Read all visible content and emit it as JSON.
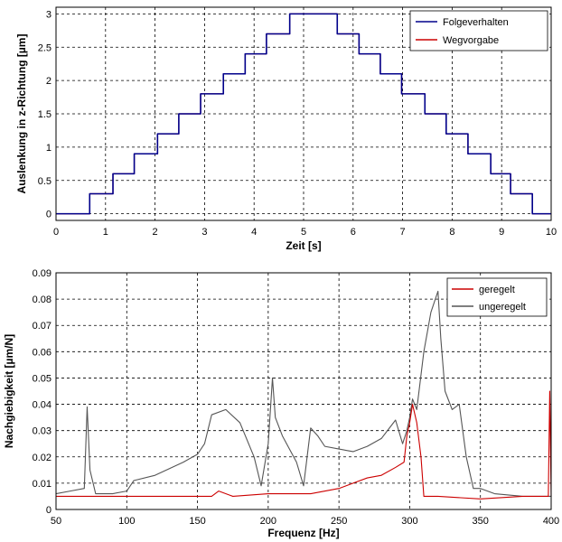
{
  "chart_data": [
    {
      "type": "line",
      "xlabel": "Zeit [s]",
      "ylabel": "Auslenkung in z-Richtung [µm]",
      "xlim": [
        0,
        10
      ],
      "ylim": [
        -0.1,
        3.1
      ],
      "xticks": [
        0,
        1,
        2,
        3,
        4,
        5,
        6,
        7,
        8,
        9,
        10
      ],
      "yticks": [
        0,
        0.5,
        1,
        1.5,
        2,
        2.5,
        3
      ],
      "ytick_labels": [
        "0",
        "0.5",
        "1",
        "1.5",
        "2",
        "2.5",
        "3"
      ],
      "grid": true,
      "legend_position": "top-right",
      "series": [
        {
          "name": "Folgeverhalten",
          "color": "#00008b",
          "x": [
            0,
            0.68,
            0.68,
            1.15,
            1.15,
            1.58,
            1.58,
            2.05,
            2.05,
            2.48,
            2.48,
            2.92,
            2.92,
            3.38,
            3.38,
            3.82,
            3.82,
            4.25,
            4.25,
            4.72,
            4.72,
            5.68,
            5.68,
            6.12,
            6.12,
            6.55,
            6.55,
            6.98,
            6.98,
            7.45,
            7.45,
            7.88,
            7.88,
            8.32,
            8.32,
            8.78,
            8.78,
            9.18,
            9.18,
            9.62,
            9.62,
            10
          ],
          "y": [
            0,
            0,
            0.3,
            0.3,
            0.6,
            0.6,
            0.9,
            0.9,
            1.2,
            1.2,
            1.5,
            1.5,
            1.8,
            1.8,
            2.1,
            2.1,
            2.4,
            2.4,
            2.7,
            2.7,
            3.0,
            3.0,
            2.7,
            2.7,
            2.4,
            2.4,
            2.1,
            2.1,
            1.8,
            1.8,
            1.5,
            1.5,
            1.2,
            1.2,
            0.9,
            0.9,
            0.6,
            0.6,
            0.3,
            0.3,
            0,
            0
          ]
        },
        {
          "name": "Wegvorgabe",
          "color": "#cc0000",
          "x": [
            0,
            0.68,
            0.68,
            1.15,
            1.15,
            1.58,
            1.58,
            2.05,
            2.05,
            2.48,
            2.48,
            2.92,
            2.92,
            3.38,
            3.38,
            3.82,
            3.82,
            4.25,
            4.25,
            4.72,
            4.72,
            5.68,
            5.68,
            6.12,
            6.12,
            6.55,
            6.55,
            6.98,
            6.98,
            7.45,
            7.45,
            7.88,
            7.88,
            8.32,
            8.32,
            8.78,
            8.78,
            9.18,
            9.18,
            9.62,
            9.62,
            10
          ],
          "y": [
            0,
            0,
            0.3,
            0.3,
            0.6,
            0.6,
            0.9,
            0.9,
            1.2,
            1.2,
            1.5,
            1.5,
            1.8,
            1.8,
            2.1,
            2.1,
            2.4,
            2.4,
            2.7,
            2.7,
            3.0,
            3.0,
            2.7,
            2.7,
            2.4,
            2.4,
            2.1,
            2.1,
            1.8,
            1.8,
            1.5,
            1.5,
            1.2,
            1.2,
            0.9,
            0.9,
            0.6,
            0.6,
            0.3,
            0.3,
            0,
            0
          ]
        }
      ]
    },
    {
      "type": "line",
      "xlabel": "Frequenz [Hz]",
      "ylabel": "Nachgiebigkeit [µm/N]",
      "xlim": [
        50,
        400
      ],
      "ylim": [
        0,
        0.09
      ],
      "xticks": [
        50,
        100,
        150,
        200,
        250,
        300,
        350,
        400
      ],
      "yticks": [
        0,
        0.01,
        0.02,
        0.03,
        0.04,
        0.05,
        0.06,
        0.07,
        0.08,
        0.09
      ],
      "ytick_labels": [
        "0",
        "0.01",
        "0.02",
        "0.03",
        "0.04",
        "0.05",
        "0.06",
        "0.07",
        "0.08",
        "0.09"
      ],
      "grid": true,
      "legend_position": "top-right",
      "series": [
        {
          "name": "geregelt",
          "color": "#cc0000",
          "x": [
            50,
            100,
            150,
            160,
            165,
            175,
            200,
            230,
            250,
            260,
            270,
            280,
            290,
            296,
            298,
            300,
            302,
            305,
            308,
            310,
            320,
            350,
            380,
            398,
            399,
            400
          ],
          "y": [
            0.005,
            0.005,
            0.005,
            0.005,
            0.007,
            0.005,
            0.006,
            0.006,
            0.008,
            0.01,
            0.012,
            0.013,
            0.016,
            0.018,
            0.028,
            0.033,
            0.04,
            0.033,
            0.02,
            0.005,
            0.005,
            0.004,
            0.005,
            0.005,
            0.045,
            0.005
          ]
        },
        {
          "name": "ungeregelt",
          "color": "#555555",
          "x": [
            50,
            60,
            70,
            72,
            74,
            78,
            90,
            100,
            105,
            120,
            140,
            150,
            155,
            160,
            170,
            180,
            190,
            195,
            200,
            203,
            205,
            210,
            220,
            225,
            230,
            235,
            240,
            250,
            260,
            270,
            280,
            290,
            295,
            298,
            300,
            302,
            305,
            310,
            315,
            320,
            322,
            325,
            330,
            335,
            340,
            345,
            350,
            360,
            380,
            400
          ],
          "y": [
            0.006,
            0.007,
            0.008,
            0.039,
            0.015,
            0.006,
            0.006,
            0.007,
            0.011,
            0.013,
            0.018,
            0.021,
            0.025,
            0.036,
            0.038,
            0.033,
            0.02,
            0.009,
            0.025,
            0.05,
            0.035,
            0.028,
            0.018,
            0.009,
            0.031,
            0.028,
            0.024,
            0.023,
            0.022,
            0.024,
            0.027,
            0.034,
            0.025,
            0.03,
            0.035,
            0.042,
            0.038,
            0.06,
            0.075,
            0.083,
            0.065,
            0.045,
            0.038,
            0.04,
            0.02,
            0.008,
            0.008,
            0.006,
            0.005,
            0.005
          ]
        }
      ]
    }
  ]
}
